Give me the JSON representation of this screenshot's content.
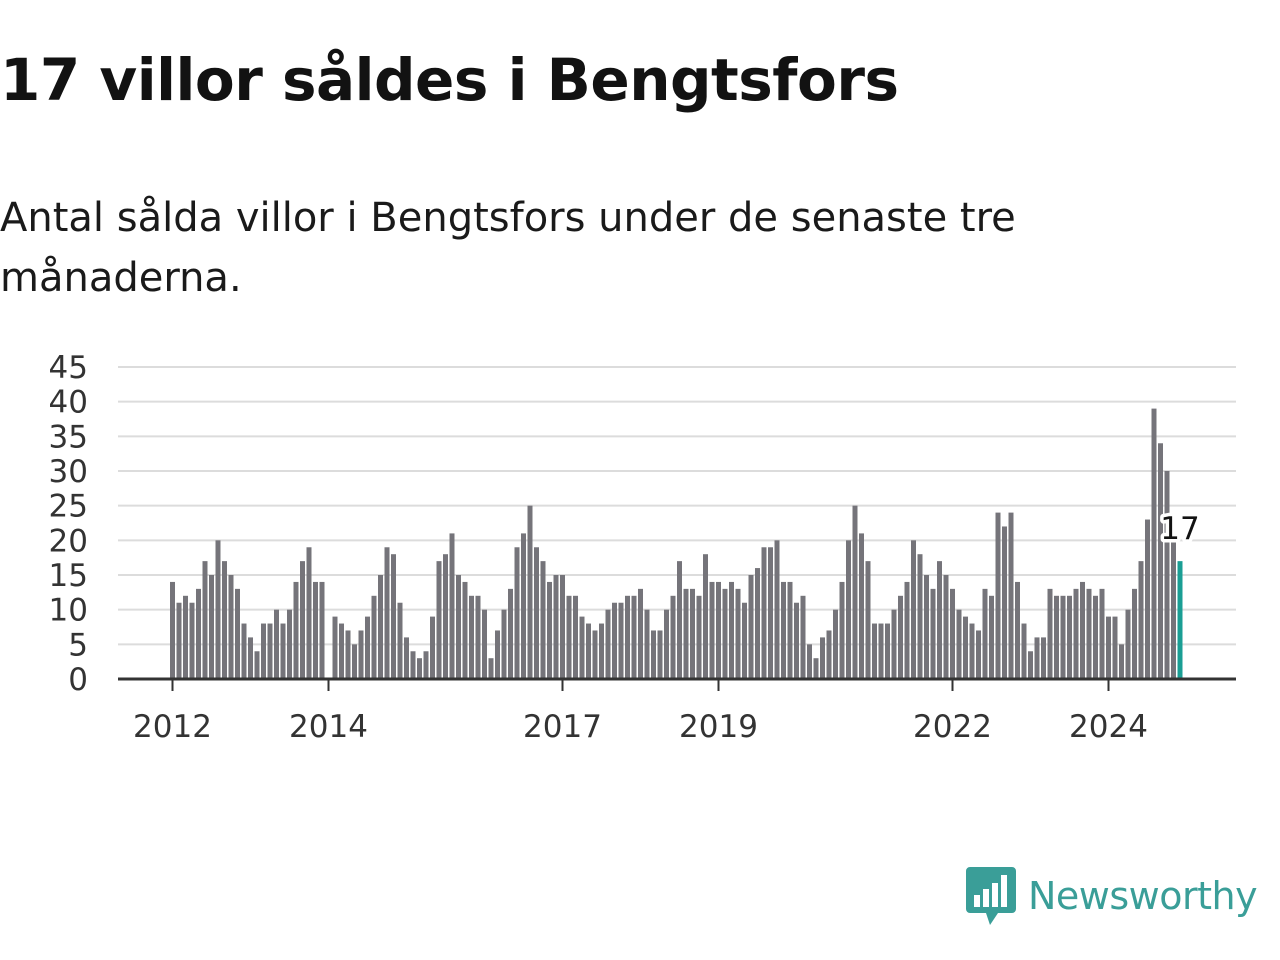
{
  "header": {
    "title": "17 villor såldes i Bengtsfors",
    "subtitle": "Antal sålda villor i Bengtsfors under de senaste tre månaderna."
  },
  "logo": {
    "text": "Newsworthy",
    "icon": "bar-chart-speech-bubble-icon",
    "color": "#3a9e98"
  },
  "colors": {
    "bar": "#75747a",
    "highlight": "#1a9e94",
    "grid": "#dcdcdc",
    "axis": "#333333"
  },
  "chart_data": {
    "type": "bar",
    "title": "17 villor såldes i Bengtsfors",
    "subtitle": "Antal sålda villor i Bengtsfors under de senaste tre månaderna.",
    "xlabel": "",
    "ylabel": "",
    "ylim": [
      0,
      45
    ],
    "yticks": [
      0,
      5,
      10,
      15,
      20,
      25,
      30,
      35,
      40,
      45
    ],
    "grid": true,
    "legend": "none",
    "xticks": [
      {
        "label": "2012",
        "index": 0
      },
      {
        "label": "2014",
        "index": 24
      },
      {
        "label": "2017",
        "index": 60
      },
      {
        "label": "2019",
        "index": 84
      },
      {
        "label": "2022",
        "index": 120
      },
      {
        "label": "2024",
        "index": 144
      }
    ],
    "highlight_label": "17",
    "values": [
      14,
      11,
      12,
      11,
      13,
      17,
      15,
      20,
      17,
      15,
      13,
      8,
      6,
      4,
      8,
      8,
      10,
      8,
      10,
      14,
      17,
      19,
      14,
      14,
      0,
      9,
      8,
      7,
      5,
      7,
      9,
      12,
      15,
      19,
      18,
      11,
      6,
      4,
      3,
      4,
      9,
      17,
      18,
      21,
      15,
      14,
      12,
      12,
      10,
      3,
      7,
      10,
      13,
      19,
      21,
      25,
      19,
      17,
      14,
      15,
      15,
      12,
      12,
      9,
      8,
      7,
      8,
      10,
      11,
      11,
      12,
      12,
      13,
      10,
      7,
      7,
      10,
      12,
      17,
      13,
      13,
      12,
      18,
      14,
      14,
      13,
      14,
      13,
      11,
      15,
      16,
      19,
      19,
      20,
      14,
      14,
      11,
      12,
      5,
      3,
      6,
      7,
      10,
      14,
      20,
      25,
      21,
      17,
      8,
      8,
      8,
      10,
      12,
      14,
      20,
      18,
      15,
      13,
      17,
      15,
      13,
      10,
      9,
      8,
      7,
      13,
      12,
      24,
      22,
      24,
      14,
      8,
      4,
      6,
      6,
      13,
      12,
      12,
      12,
      13,
      14,
      13,
      12,
      13,
      9,
      9,
      5,
      10,
      13,
      17,
      23,
      39,
      34,
      30,
      20,
      17
    ]
  }
}
